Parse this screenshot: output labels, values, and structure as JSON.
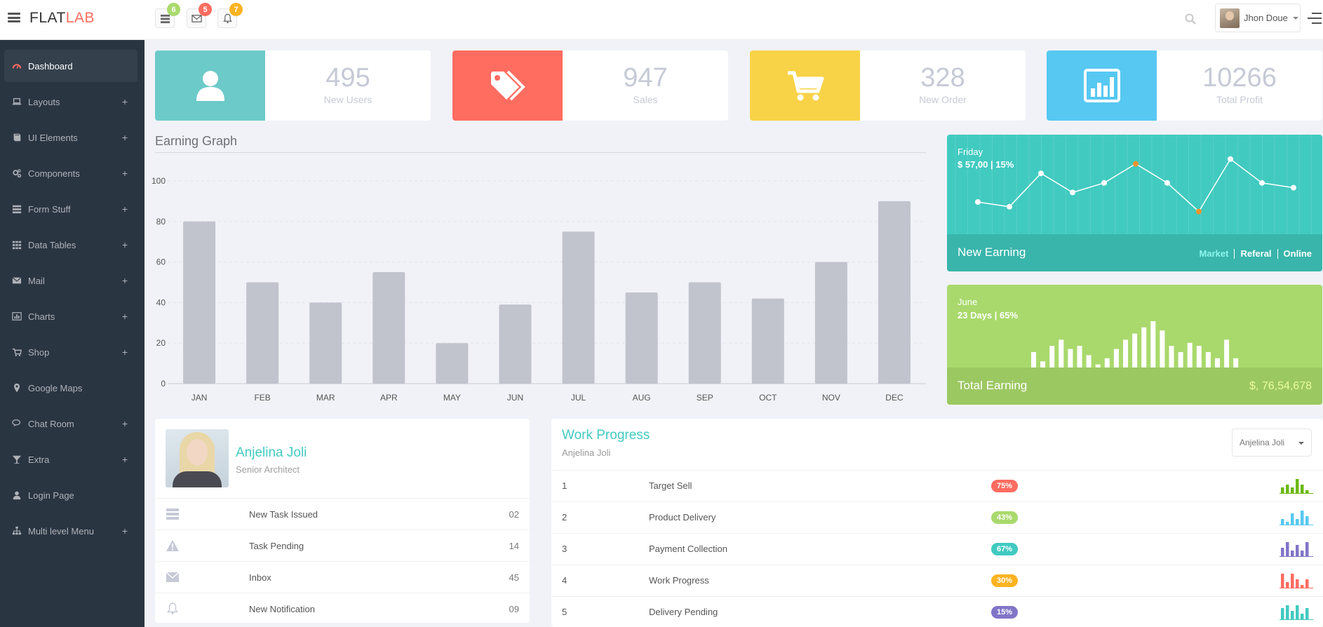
{
  "header": {
    "logo_main": "FLAT",
    "logo_accent": "LAB",
    "notifications": [
      {
        "icon": "tasks-icon",
        "count": "6",
        "color": "#a9d96c"
      },
      {
        "icon": "envelope-icon",
        "count": "5",
        "color": "#ff6c60"
      },
      {
        "icon": "bell-icon",
        "count": "7",
        "color": "#fcb322"
      }
    ],
    "user_name": "Jhon Doue"
  },
  "sidebar": {
    "items": [
      {
        "label": "Dashboard",
        "icon": "dashboard-icon",
        "expandable": false,
        "active": true
      },
      {
        "label": "Layouts",
        "icon": "laptop-icon",
        "expandable": true
      },
      {
        "label": "UI Elements",
        "icon": "book-icon",
        "expandable": true
      },
      {
        "label": "Components",
        "icon": "cogs-icon",
        "expandable": true
      },
      {
        "label": "Form Stuff",
        "icon": "tasks-icon",
        "expandable": true
      },
      {
        "label": "Data Tables",
        "icon": "th-icon",
        "expandable": true
      },
      {
        "label": "Mail",
        "icon": "envelope-icon",
        "expandable": true
      },
      {
        "label": "Charts",
        "icon": "bar-chart-icon",
        "expandable": true
      },
      {
        "label": "Shop",
        "icon": "shopping-cart-icon",
        "expandable": true
      },
      {
        "label": "Google Maps",
        "icon": "map-marker-icon",
        "expandable": false
      },
      {
        "label": "Chat Room",
        "icon": "comments-icon",
        "expandable": true
      },
      {
        "label": "Extra",
        "icon": "glass-icon",
        "expandable": true
      },
      {
        "label": "Login Page",
        "icon": "user-icon",
        "expandable": false
      },
      {
        "label": "Multi level Menu",
        "icon": "sitemap-icon",
        "expandable": true
      }
    ],
    "plus_symbol": "+"
  },
  "stats": [
    {
      "value": "495",
      "label": "New Users",
      "color": "#6ccac9",
      "icon": "user-icon"
    },
    {
      "value": "947",
      "label": "Sales",
      "color": "#ff6c60",
      "icon": "tags-icon"
    },
    {
      "value": "328",
      "label": "New Order",
      "color": "#f8d347",
      "icon": "shopping-cart-icon"
    },
    {
      "value": "10266",
      "label": "Total Profit",
      "color": "#57c8f2",
      "icon": "bar-chart-icon"
    }
  ],
  "graph": {
    "title": "Earning Graph"
  },
  "chart_data": {
    "type": "bar",
    "title": "Earning Graph",
    "categories": [
      "JAN",
      "FEB",
      "MAR",
      "APR",
      "MAY",
      "JUN",
      "JUL",
      "AUG",
      "SEP",
      "OCT",
      "NOV",
      "DEC"
    ],
    "values": [
      80,
      50,
      40,
      55,
      20,
      39,
      75,
      45,
      50,
      42,
      60,
      90
    ],
    "ylim": [
      0,
      100
    ],
    "yticks": [
      0,
      20,
      40,
      60,
      80,
      100
    ],
    "grid": true,
    "bar_color": "#c1c3cd"
  },
  "new_earning": {
    "day": "Friday",
    "amount": "$ 57,00 | 15%",
    "title": "New Earning",
    "links": [
      "Market",
      "Referal",
      "Online"
    ],
    "sparkline": [
      5,
      4,
      11,
      7,
      9,
      13,
      9,
      3,
      14,
      9,
      8
    ],
    "highlight_points": [
      5,
      7
    ]
  },
  "total_earning": {
    "month": "June",
    "stat": "23 Days | 65%",
    "title": "Total Earning",
    "amount": "$, 76,54,678",
    "bars": [
      5,
      2,
      7,
      9,
      6,
      7,
      4,
      1,
      3,
      6,
      9,
      11,
      13,
      15,
      12,
      7,
      5,
      8,
      7,
      5,
      3,
      9,
      3
    ]
  },
  "profile": {
    "name": "Anjelina Joli",
    "role": "Senior Architect",
    "rows": [
      {
        "icon": "tasks-icon",
        "label": "New Task Issued",
        "value": "02"
      },
      {
        "icon": "warning-icon",
        "label": "Task Pending",
        "value": "14"
      },
      {
        "icon": "envelope-icon",
        "label": "Inbox",
        "value": "45"
      },
      {
        "icon": "bell-icon",
        "label": "New Notification",
        "value": "09"
      }
    ]
  },
  "work_progress": {
    "title": "Work Progress",
    "subtitle": "Anjelina Joli",
    "select_value": "Anjelina Joli",
    "rows": [
      {
        "num": "1",
        "task": "Target Sell",
        "percent": "75%",
        "color": "#ff6c60",
        "spark_color": "#6bb811",
        "spark": [
          2,
          3,
          2,
          5,
          3,
          1
        ]
      },
      {
        "num": "2",
        "task": "Product Delivery",
        "percent": "43%",
        "color": "#a9d96c",
        "spark_color": "#57c8f2",
        "spark": [
          2,
          1,
          4,
          2,
          5,
          3
        ]
      },
      {
        "num": "3",
        "task": "Payment Collection",
        "percent": "67%",
        "color": "#41cac0",
        "spark_color": "#8175c7",
        "spark": [
          3,
          5,
          2,
          4,
          2,
          5
        ]
      },
      {
        "num": "4",
        "task": "Work Progress",
        "percent": "30%",
        "color": "#fcb322",
        "spark_color": "#ff6c60",
        "spark": [
          5,
          2,
          5,
          3,
          1,
          3
        ]
      },
      {
        "num": "5",
        "task": "Delivery Pending",
        "percent": "15%",
        "color": "#8175c7",
        "spark_color": "#41cac0",
        "spark": [
          4,
          5,
          3,
          5,
          2,
          4
        ]
      }
    ]
  }
}
